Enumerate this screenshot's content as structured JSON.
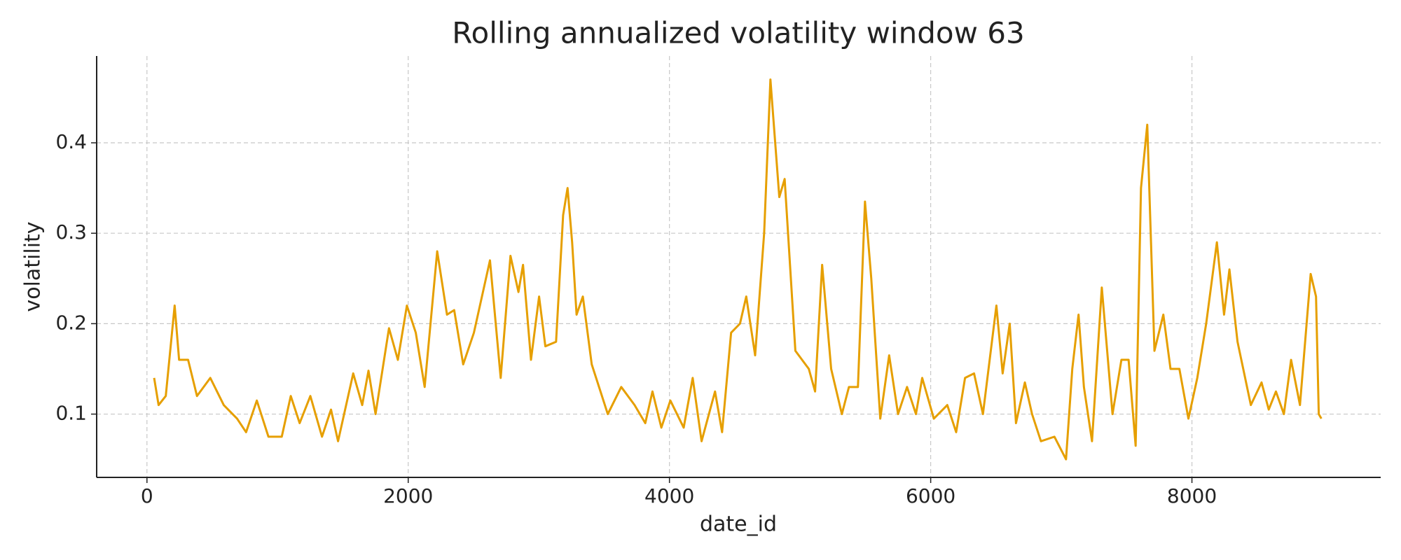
{
  "chart_data": {
    "type": "line",
    "title": "Rolling annualized volatility window 63",
    "x_label": "date_id",
    "y_label": "volatility",
    "x": [
      55,
      89,
      144,
      212,
      246,
      315,
      383,
      485,
      588,
      690,
      759,
      841,
      930,
      1032,
      1101,
      1169,
      1251,
      1340,
      1409,
      1463,
      1579,
      1648,
      1696,
      1750,
      1853,
      1921,
      1990,
      2058,
      2126,
      2222,
      2297,
      2352,
      2421,
      2503,
      2626,
      2708,
      2783,
      2844,
      2879,
      2940,
      3002,
      3050,
      3132,
      3186,
      3220,
      3255,
      3289,
      3337,
      3405,
      3528,
      3631,
      3733,
      3815,
      3870,
      3938,
      4007,
      4109,
      4178,
      4246,
      4349,
      4403,
      4472,
      4540,
      4588,
      4656,
      4725,
      4773,
      4841,
      4882,
      4964,
      5067,
      5115,
      5169,
      5238,
      5320,
      5374,
      5443,
      5497,
      5545,
      5614,
      5682,
      5750,
      5819,
      5887,
      5935,
      6024,
      6127,
      6195,
      6263,
      6332,
      6400,
      6503,
      6551,
      6605,
      6653,
      6721,
      6776,
      6844,
      6947,
      7036,
      7084,
      7132,
      7173,
      7235,
      7310,
      7392,
      7460,
      7515,
      7569,
      7610,
      7658,
      7713,
      7781,
      7836,
      7904,
      7973,
      8041,
      8109,
      8191,
      8246,
      8287,
      8349,
      8451,
      8533,
      8588,
      8643,
      8704,
      8759,
      8827,
      8909,
      8950,
      8971,
      8991
    ],
    "series": [
      {
        "name": "volatility",
        "color": "#e69f00",
        "values": [
          0.14,
          0.11,
          0.12,
          0.22,
          0.16,
          0.16,
          0.12,
          0.14,
          0.11,
          0.095,
          0.08,
          0.115,
          0.075,
          0.075,
          0.12,
          0.09,
          0.12,
          0.075,
          0.105,
          0.07,
          0.145,
          0.11,
          0.148,
          0.1,
          0.195,
          0.16,
          0.22,
          0.19,
          0.13,
          0.28,
          0.21,
          0.215,
          0.155,
          0.19,
          0.27,
          0.14,
          0.275,
          0.235,
          0.265,
          0.16,
          0.23,
          0.175,
          0.18,
          0.32,
          0.35,
          0.29,
          0.21,
          0.23,
          0.155,
          0.1,
          0.13,
          0.11,
          0.09,
          0.125,
          0.085,
          0.115,
          0.085,
          0.14,
          0.07,
          0.125,
          0.08,
          0.19,
          0.2,
          0.23,
          0.165,
          0.3,
          0.47,
          0.34,
          0.36,
          0.17,
          0.15,
          0.125,
          0.265,
          0.15,
          0.1,
          0.13,
          0.13,
          0.335,
          0.25,
          0.095,
          0.165,
          0.1,
          0.13,
          0.1,
          0.14,
          0.095,
          0.11,
          0.08,
          0.14,
          0.145,
          0.1,
          0.22,
          0.145,
          0.2,
          0.09,
          0.135,
          0.1,
          0.07,
          0.075,
          0.05,
          0.15,
          0.21,
          0.13,
          0.07,
          0.24,
          0.1,
          0.16,
          0.16,
          0.065,
          0.35,
          0.42,
          0.17,
          0.21,
          0.15,
          0.15,
          0.095,
          0.14,
          0.2,
          0.29,
          0.21,
          0.26,
          0.18,
          0.11,
          0.135,
          0.105,
          0.125,
          0.1,
          0.16,
          0.11,
          0.255,
          0.23,
          0.1,
          0.095
        ]
      }
    ],
    "xlim": [
      -385,
      9445
    ],
    "ylim": [
      0.03,
      0.496
    ],
    "xticks": [
      0,
      2000,
      4000,
      6000,
      8000
    ],
    "yticks": [
      0.1,
      0.2,
      0.3,
      0.4
    ],
    "grid": true
  }
}
